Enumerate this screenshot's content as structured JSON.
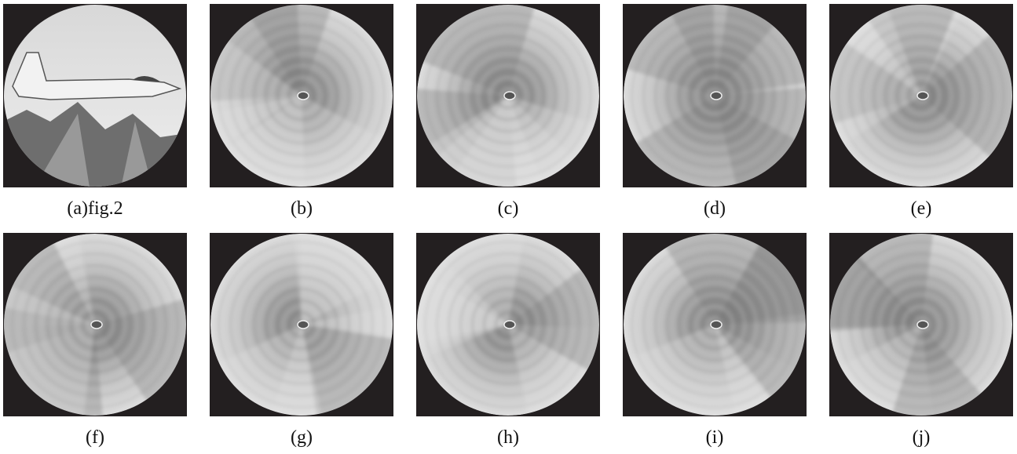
{
  "panels": [
    {
      "caption": "(a)fig.2"
    },
    {
      "caption": "(b)"
    },
    {
      "caption": "(c)"
    },
    {
      "caption": "(d)"
    },
    {
      "caption": "(e)"
    },
    {
      "caption": "(f)"
    },
    {
      "caption": "(g)"
    },
    {
      "caption": "(h)"
    },
    {
      "caption": "(i)"
    },
    {
      "caption": "(j)"
    }
  ]
}
